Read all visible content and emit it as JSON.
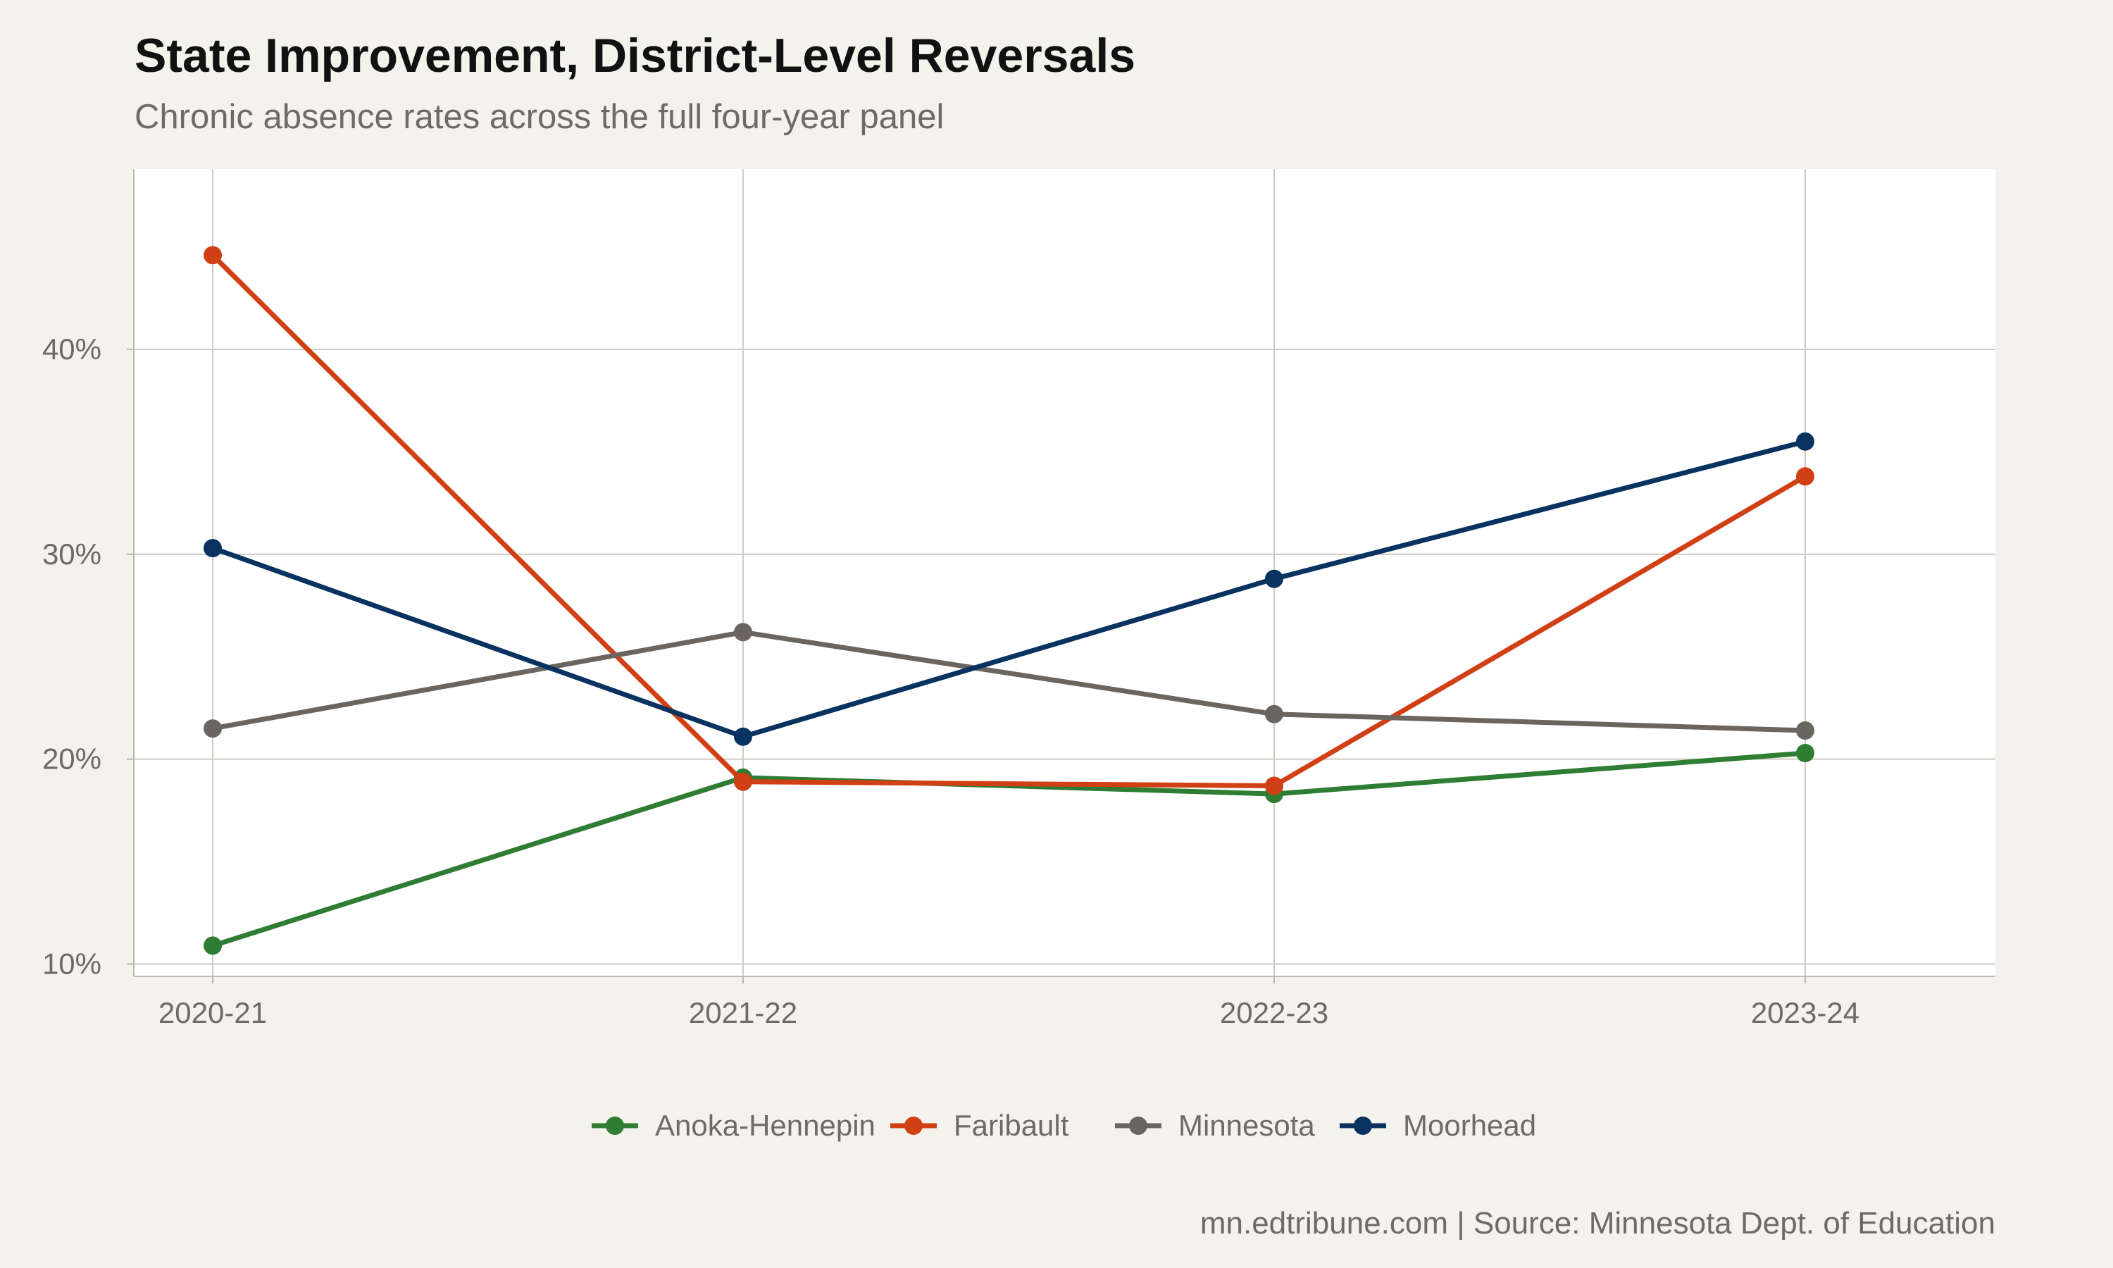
{
  "header": {
    "title": "State Improvement, District-Level Reversals",
    "subtitle": "Chronic absence rates across the full four-year panel"
  },
  "footer": {
    "caption": "mn.edtribune.com | Source: Minnesota Dept. of Education"
  },
  "chart_data": {
    "type": "line",
    "title": "State Improvement, District-Level Reversals",
    "subtitle": "Chronic absence rates across the full four-year panel",
    "xlabel": "",
    "ylabel": "",
    "categories": [
      "2020-21",
      "2021-22",
      "2022-23",
      "2023-24"
    ],
    "y_ticks": [
      10,
      20,
      30,
      40
    ],
    "y_tick_labels": [
      "10%",
      "20%",
      "30%",
      "40%"
    ],
    "ylim": [
      9.4,
      48.8
    ],
    "grid": true,
    "legend_position": "bottom",
    "series": [
      {
        "name": "Anoka-Hennepin",
        "color": "#2e7d32",
        "values": [
          10.9,
          19.1,
          18.3,
          20.3
        ]
      },
      {
        "name": "Faribault",
        "color": "#d13f14",
        "values": [
          44.6,
          18.9,
          18.7,
          33.8
        ]
      },
      {
        "name": "Minnesota",
        "color": "#6b6560",
        "values": [
          21.5,
          26.2,
          22.2,
          21.4
        ]
      },
      {
        "name": "Moorhead",
        "color": "#08325f",
        "values": [
          30.3,
          21.1,
          28.8,
          35.5
        ]
      }
    ]
  }
}
